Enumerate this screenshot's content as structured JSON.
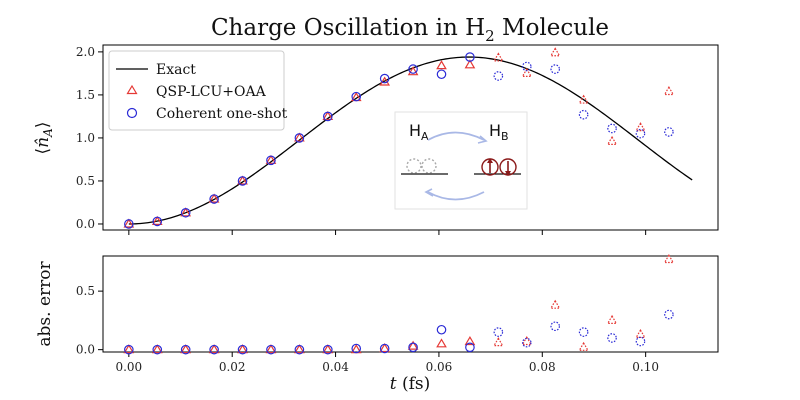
{
  "colors": {
    "exact": "#000000",
    "qsp": "#e53935",
    "coherent": "#2b2bd6"
  },
  "chart_data": [
    {
      "type": "line",
      "title_prefix": "Charge Oscillation in H",
      "title_subscript": "2",
      "title_suffix": " Molecule",
      "ylabel": "⟨n̂_A⟩",
      "xlim": [
        -0.005,
        0.114
      ],
      "ylim": [
        -0.07,
        2.08
      ],
      "yticks": [
        0.0,
        0.5,
        1.0,
        1.5,
        2.0
      ],
      "ytick_labels": [
        "0.0",
        "0.5",
        "1.0",
        "1.5",
        "2.0"
      ],
      "legend_position": "top-left",
      "exact_curve": {
        "name": "Exact",
        "amplitude": 1.94,
        "period_fs": 0.1316,
        "x_max": 0.109
      },
      "series": [
        {
          "name": "QSP-LCU+OAA",
          "marker": "triangle",
          "x": [
            0.0,
            0.0055,
            0.011,
            0.0165,
            0.022,
            0.0275,
            0.033,
            0.0385,
            0.044,
            0.0495,
            0.055,
            0.0605,
            0.066,
            0.0715,
            0.077,
            0.0825,
            0.088,
            0.0935,
            0.099,
            0.1045
          ],
          "y": [
            0.0,
            0.03,
            0.13,
            0.29,
            0.5,
            0.74,
            1.0,
            1.25,
            1.47,
            1.65,
            1.77,
            1.84,
            1.85,
            1.93,
            1.75,
            1.99,
            1.44,
            0.96,
            1.12,
            1.54
          ]
        },
        {
          "name": "Coherent one-shot",
          "marker": "circle",
          "x": [
            0.0,
            0.0055,
            0.011,
            0.0165,
            0.022,
            0.0275,
            0.033,
            0.0385,
            0.044,
            0.0495,
            0.055,
            0.0605,
            0.066,
            0.0715,
            0.077,
            0.0825,
            0.088,
            0.0935,
            0.099,
            0.1045
          ],
          "y": [
            0.0,
            0.03,
            0.13,
            0.29,
            0.5,
            0.74,
            1.0,
            1.25,
            1.48,
            1.69,
            1.8,
            1.74,
            1.94,
            1.72,
            1.83,
            1.8,
            1.27,
            1.11,
            1.05,
            1.07
          ]
        }
      ],
      "inset": {
        "left_label": "H",
        "left_sub": "A",
        "right_label": "H",
        "right_sub": "B"
      }
    },
    {
      "type": "scatter",
      "xlabel_var": "t",
      "xlabel_unit": " (fs)",
      "ylabel": "abs. error",
      "xlim": [
        -0.005,
        0.114
      ],
      "ylim": [
        -0.02,
        0.8
      ],
      "xticks": [
        0.0,
        0.02,
        0.04,
        0.06,
        0.08,
        0.1
      ],
      "xtick_labels": [
        "0.00",
        "0.02",
        "0.04",
        "0.06",
        "0.08",
        "0.10"
      ],
      "yticks": [
        0.0,
        0.5
      ],
      "ytick_labels": [
        "0.0",
        "0.5"
      ],
      "series": [
        {
          "name": "QSP-LCU+OAA",
          "marker": "triangle",
          "x": [
            0.0,
            0.0055,
            0.011,
            0.0165,
            0.022,
            0.0275,
            0.033,
            0.0385,
            0.044,
            0.0495,
            0.055,
            0.0605,
            0.066,
            0.0715,
            0.077,
            0.0825,
            0.088,
            0.0935,
            0.099,
            0.1045
          ],
          "y": [
            0.0,
            0.0,
            0.0,
            0.0,
            0.0,
            0.0,
            0.0,
            0.0,
            0.0,
            0.01,
            0.03,
            0.05,
            0.07,
            0.06,
            0.07,
            0.38,
            0.02,
            0.25,
            0.13,
            0.77
          ]
        },
        {
          "name": "Coherent one-shot",
          "marker": "circle",
          "x": [
            0.0,
            0.0055,
            0.011,
            0.0165,
            0.022,
            0.0275,
            0.033,
            0.0385,
            0.044,
            0.0495,
            0.055,
            0.0605,
            0.066,
            0.0715,
            0.077,
            0.0825,
            0.088,
            0.0935,
            0.099,
            0.1045
          ],
          "y": [
            0.0,
            0.0,
            0.0,
            0.0,
            0.0,
            0.0,
            0.0,
            0.0,
            0.01,
            0.01,
            0.02,
            0.17,
            0.02,
            0.15,
            0.06,
            0.2,
            0.15,
            0.1,
            0.07,
            0.3
          ]
        }
      ]
    }
  ]
}
